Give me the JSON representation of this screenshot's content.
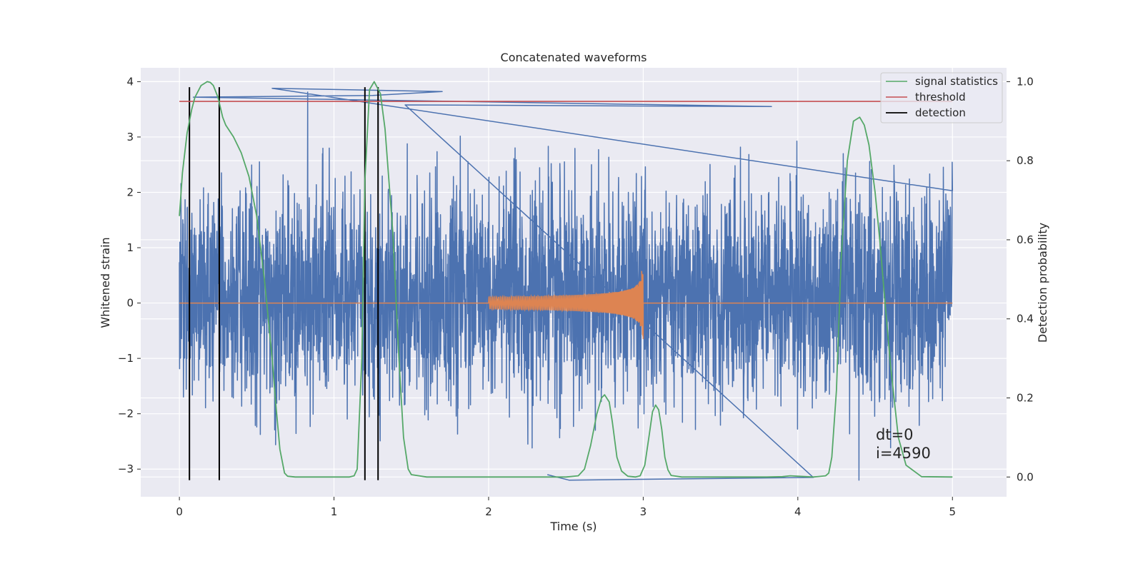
{
  "chart_data": {
    "type": "line",
    "title": "Concatenated waveforms",
    "xlabel": "Time (s)",
    "ylabel": "Whitened strain",
    "y2label": "Detection probability",
    "xlim": [
      -0.25,
      5.35
    ],
    "ylim": [
      -3.5,
      4.25
    ],
    "y2lim": [
      -0.05,
      1.035
    ],
    "x_ticks": [
      0,
      1,
      2,
      3,
      4,
      5
    ],
    "y_ticks": [
      -3,
      -2,
      -1,
      0,
      1,
      2,
      3,
      4
    ],
    "y2_ticks": [
      0.0,
      0.2,
      0.4,
      0.6,
      0.8,
      1.0
    ],
    "x_tick_labels": [
      "0",
      "1",
      "2",
      "3",
      "4",
      "5"
    ],
    "y_tick_labels": [
      "−3",
      "−2",
      "−1",
      "0",
      "1",
      "2",
      "3",
      "4"
    ],
    "y2_tick_labels": [
      "0.0",
      "0.2",
      "0.4",
      "0.6",
      "0.8",
      "1.0"
    ],
    "grid": true,
    "legend_position": "top-right",
    "colors": {
      "strain": "#4c72b0",
      "injection": "#dd8452",
      "signal": "#55a868",
      "threshold": "#c44e52",
      "detection": "#000000",
      "axes_bg": "#eaeaf2",
      "grid": "#ffffff"
    },
    "series": [
      {
        "name": "signal statistics",
        "axis": "right",
        "x": [
          0.0,
          0.02,
          0.05,
          0.08,
          0.1,
          0.14,
          0.18,
          0.2,
          0.22,
          0.25,
          0.28,
          0.3,
          0.35,
          0.4,
          0.45,
          0.5,
          0.55,
          0.6,
          0.62,
          0.65,
          0.68,
          0.7,
          0.75,
          0.9,
          1.0,
          1.05,
          1.1,
          1.13,
          1.15,
          1.18,
          1.2,
          1.23,
          1.26,
          1.3,
          1.33,
          1.38,
          1.42,
          1.45,
          1.48,
          1.5,
          1.6,
          2.0,
          2.3,
          2.5,
          2.58,
          2.62,
          2.66,
          2.7,
          2.73,
          2.75,
          2.78,
          2.8,
          2.83,
          2.86,
          2.9,
          2.95,
          2.98,
          3.01,
          3.04,
          3.06,
          3.08,
          3.1,
          3.12,
          3.14,
          3.16,
          3.18,
          3.25,
          3.5,
          3.8,
          3.9,
          3.95,
          4.0,
          4.1,
          4.18,
          4.2,
          4.22,
          4.25,
          4.28,
          4.32,
          4.36,
          4.4,
          4.43,
          4.46,
          4.5,
          4.53,
          4.56,
          4.6,
          4.65,
          4.7,
          4.8,
          5.0
        ],
        "values": [
          0.66,
          0.77,
          0.87,
          0.93,
          0.96,
          0.99,
          1.0,
          0.998,
          0.99,
          0.96,
          0.91,
          0.89,
          0.86,
          0.82,
          0.76,
          0.66,
          0.5,
          0.3,
          0.2,
          0.07,
          0.01,
          0.002,
          0.0,
          0.0,
          0.0,
          0.0,
          0.0,
          0.003,
          0.02,
          0.3,
          0.75,
          0.98,
          1.0,
          0.97,
          0.88,
          0.62,
          0.3,
          0.1,
          0.02,
          0.006,
          0.0,
          0.0,
          0.0,
          0.0,
          0.003,
          0.02,
          0.08,
          0.16,
          0.2,
          0.208,
          0.19,
          0.14,
          0.05,
          0.015,
          0.002,
          0.0,
          0.003,
          0.03,
          0.11,
          0.165,
          0.182,
          0.17,
          0.12,
          0.05,
          0.018,
          0.004,
          0.0,
          0.0,
          0.0,
          0.001,
          0.003,
          0.002,
          0.0,
          0.003,
          0.01,
          0.05,
          0.22,
          0.55,
          0.8,
          0.9,
          0.91,
          0.89,
          0.84,
          0.72,
          0.6,
          0.46,
          0.28,
          0.1,
          0.03,
          0.001,
          0.0
        ]
      },
      {
        "name": "threshold",
        "axis": "right",
        "x": [
          0.0,
          5.0
        ],
        "values": [
          0.95,
          0.95
        ]
      },
      {
        "name": "detection",
        "axis": "left",
        "type": "vlines",
        "x": [
          0.065,
          0.258,
          1.2,
          1.285
        ],
        "y_range": [
          -3.2,
          3.9
        ]
      },
      {
        "axis": "left",
        "type": "noise",
        "x_range": [
          0.0,
          5.0
        ],
        "typical_range": [
          -1.7,
          2.0
        ],
        "max": 3.9,
        "min": -3.2
      },
      {
        "axis": "left",
        "type": "chirp",
        "x_range": [
          0.0,
          5.0
        ],
        "chirp_range": [
          2.0,
          3.0
        ],
        "peak": 0.58,
        "trough": -0.65
      }
    ],
    "annotations": [
      "dt=0",
      "i=4590"
    ]
  }
}
